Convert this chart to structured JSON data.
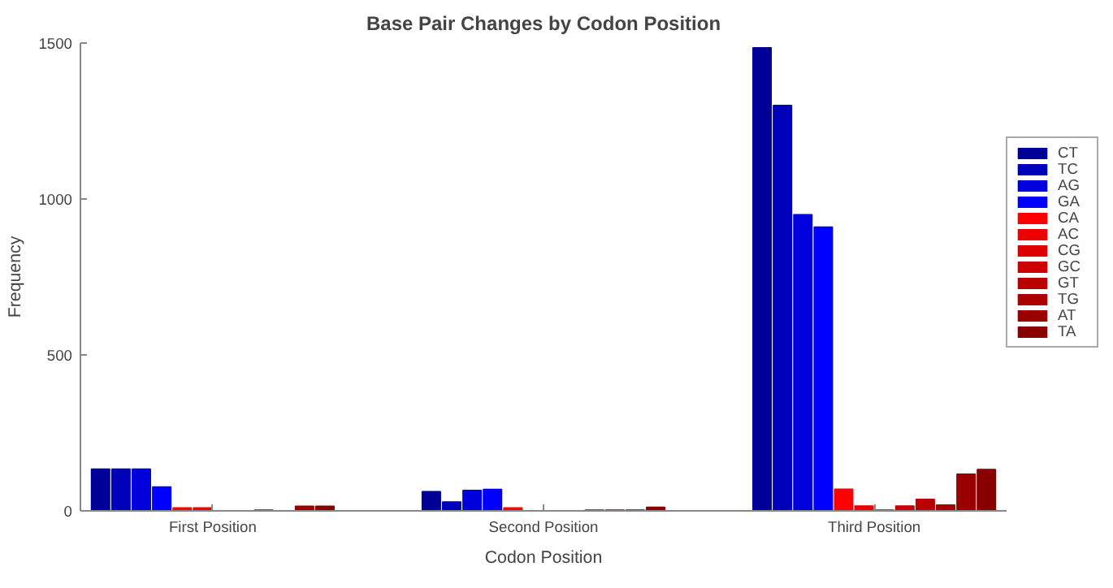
{
  "chart_data": {
    "type": "bar",
    "title": "Base Pair Changes by Codon Position",
    "xlabel": "Codon Position",
    "ylabel": "Frequency",
    "categories": [
      "First Position",
      "Second Position",
      "Third Position"
    ],
    "series": [
      {
        "name": "CT",
        "color": "#000099",
        "values": [
          134,
          62,
          1485
        ]
      },
      {
        "name": "TC",
        "color": "#0000bb",
        "values": [
          134,
          29,
          1300
        ]
      },
      {
        "name": "AG",
        "color": "#0000dd",
        "values": [
          134,
          66,
          950
        ]
      },
      {
        "name": "GA",
        "color": "#0000ff",
        "values": [
          77,
          69,
          910
        ]
      },
      {
        "name": "CA",
        "color": "#ff0000",
        "values": [
          10,
          10,
          70
        ]
      },
      {
        "name": "AC",
        "color": "#ee0000",
        "values": [
          10,
          0,
          16
        ]
      },
      {
        "name": "CG",
        "color": "#dd0000",
        "values": [
          0,
          null,
          3
        ]
      },
      {
        "name": "GC",
        "color": "#cc0000",
        "values": [
          0,
          0,
          16
        ]
      },
      {
        "name": "GT",
        "color": "#bb0000",
        "values": [
          3,
          3,
          37
        ]
      },
      {
        "name": "TG",
        "color": "#aa0000",
        "values": [
          0,
          3,
          19
        ]
      },
      {
        "name": "AT",
        "color": "#990000",
        "values": [
          15,
          3,
          118
        ]
      },
      {
        "name": "TA",
        "color": "#880000",
        "values": [
          15,
          12,
          133
        ]
      }
    ],
    "ylim": [
      0,
      1500
    ],
    "yticks": [
      0,
      500,
      1000,
      1500
    ],
    "grid": false,
    "legend": "right"
  }
}
